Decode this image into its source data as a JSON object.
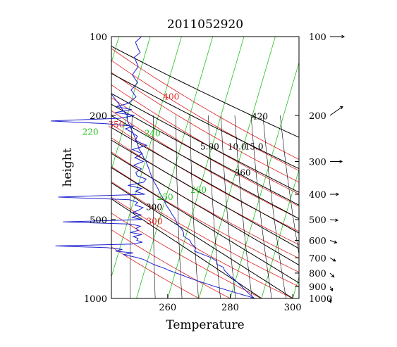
{
  "chart_data": {
    "type": "skew-t",
    "title": "2011052920",
    "xlabel": "Temperature",
    "ylabel": "height",
    "xlim": [
      242,
      302
    ],
    "ylim": [
      1000,
      100
    ],
    "y_scale": "log",
    "x_ticks": [
      260,
      280,
      300
    ],
    "y_ticks_left": [
      100,
      200,
      500,
      1000
    ],
    "y_ticks_right": [
      100,
      200,
      300,
      400,
      500,
      600,
      700,
      800,
      900,
      1000
    ],
    "isotherms": {
      "color": "#22c022",
      "step": 10,
      "labels": [
        {
          "text": "220",
          "value": 220,
          "p": 237
        },
        {
          "text": "240",
          "value": 240,
          "p": 240
        },
        {
          "text": "250",
          "value": 250,
          "p": 420
        },
        {
          "text": "260",
          "value": 260,
          "p": 395
        }
      ]
    },
    "dry_adiabats": {
      "color": "#dd2222",
      "thetas": [
        270,
        280,
        290,
        300,
        310,
        320,
        330,
        340,
        350,
        360,
        370,
        380,
        390,
        400,
        410
      ],
      "labels": [
        {
          "text": "300",
          "theta": 300,
          "p": 520
        },
        {
          "text": "350",
          "theta": 350,
          "p": 222
        },
        {
          "text": "400",
          "theta": 400,
          "p": 174
        }
      ]
    },
    "moist_adiabats": {
      "color": "#000000",
      "thetas": [
        290,
        300,
        310,
        320,
        330,
        340,
        350,
        360,
        370,
        390,
        420
      ],
      "labels": [
        {
          "text": "300",
          "theta": 300,
          "p": 460
        },
        {
          "text": "360",
          "theta": 360,
          "p": 340
        },
        {
          "text": "420",
          "theta": 420,
          "p": 207
        }
      ]
    },
    "mixing_ratio": {
      "color": "#000000",
      "values": [
        0.5,
        1,
        2,
        3,
        5,
        7,
        10,
        15,
        20,
        30
      ],
      "labels": [
        {
          "text": "5.00",
          "value": 5,
          "p": 270
        },
        {
          "text": "10.0",
          "value": 10,
          "p": 270
        },
        {
          "text": "15.0",
          "value": 15,
          "p": 270
        }
      ]
    },
    "temperature_profile": {
      "color": "#1e22cc",
      "points": [
        [
          100,
          214.8
        ],
        [
          108,
          213.5
        ],
        [
          115,
          214.1
        ],
        [
          123,
          214
        ],
        [
          130,
          215.2
        ],
        [
          140,
          217
        ],
        [
          150,
          219.7
        ],
        [
          160,
          221.6
        ],
        [
          170,
          223.9
        ],
        [
          180,
          226.1
        ],
        [
          190,
          227.9
        ],
        [
          200,
          230
        ],
        [
          210,
          230.6
        ],
        [
          220,
          231.9
        ],
        [
          230,
          233.1
        ],
        [
          240,
          234.2
        ],
        [
          250,
          235.3
        ],
        [
          260,
          236.2
        ],
        [
          270,
          237
        ],
        [
          280,
          238.3
        ],
        [
          290,
          239.2
        ],
        [
          300,
          240.3
        ],
        [
          320,
          241.9
        ],
        [
          340,
          243.3
        ],
        [
          360,
          244.9
        ],
        [
          380,
          246.6
        ],
        [
          400,
          248
        ],
        [
          420,
          249.7
        ],
        [
          440,
          250.8
        ],
        [
          460,
          252.4
        ],
        [
          480,
          253.7
        ],
        [
          500,
          255.2
        ],
        [
          520,
          256.1
        ],
        [
          540,
          257.8
        ],
        [
          560,
          258.9
        ],
        [
          580,
          259.4
        ],
        [
          600,
          261.7
        ],
        [
          620,
          262.6
        ],
        [
          640,
          264.3
        ],
        [
          660,
          264.2
        ],
        [
          680,
          267.3
        ],
        [
          700,
          270.3
        ],
        [
          720,
          272.2
        ],
        [
          740,
          272.5
        ],
        [
          760,
          274.9
        ],
        [
          780,
          275.5
        ],
        [
          800,
          276.6
        ],
        [
          820,
          277.8
        ],
        [
          840,
          279.2
        ],
        [
          860,
          280.3
        ],
        [
          880,
          281.4
        ],
        [
          900,
          282.5
        ],
        [
          920,
          283.5
        ],
        [
          940,
          284.6
        ],
        [
          960,
          285.6
        ],
        [
          980,
          286.7
        ],
        [
          1000,
          287.8
        ]
      ]
    },
    "height_profile": {
      "color": "#1e22cc",
      "points": [
        [
          100,
          251.6
        ],
        [
          105,
          249.7
        ],
        [
          110,
          250.4
        ],
        [
          115,
          251.2
        ],
        [
          120,
          249.3
        ],
        [
          130,
          250.6
        ],
        [
          140,
          248.7
        ],
        [
          150,
          250.4
        ],
        [
          160,
          248.3
        ],
        [
          170,
          249.9
        ],
        [
          180,
          247.3
        ],
        [
          185,
          243.6
        ],
        [
          190,
          248.5
        ],
        [
          195,
          243.2
        ],
        [
          200,
          249.4
        ],
        [
          205,
          244.7
        ],
        [
          210,
          222.6
        ],
        [
          215,
          240.3
        ],
        [
          220,
          249.1
        ],
        [
          225,
          246.5
        ],
        [
          230,
          248
        ],
        [
          240,
          250.3
        ],
        [
          250,
          249.6
        ],
        [
          260,
          253.3
        ],
        [
          270,
          248.7
        ],
        [
          280,
          251.9
        ],
        [
          290,
          249.5
        ],
        [
          300,
          252.2
        ],
        [
          310,
          249.1
        ],
        [
          320,
          251.6
        ],
        [
          330,
          249.8
        ],
        [
          340,
          250.2
        ],
        [
          350,
          253.1
        ],
        [
          360,
          252.3
        ],
        [
          370,
          247.3
        ],
        [
          380,
          251.7
        ],
        [
          390,
          249.7
        ],
        [
          400,
          252.7
        ],
        [
          410,
          225
        ],
        [
          420,
          247.8
        ],
        [
          430,
          250.4
        ],
        [
          440,
          249.6
        ],
        [
          450,
          252.1
        ],
        [
          460,
          250.7
        ],
        [
          470,
          248.8
        ],
        [
          480,
          251.5
        ],
        [
          490,
          248.5
        ],
        [
          500,
          251.8
        ],
        [
          510,
          226.5
        ],
        [
          520,
          248.2
        ],
        [
          530,
          251.3
        ],
        [
          540,
          249.9
        ],
        [
          550,
          250.6
        ],
        [
          560,
          248.1
        ],
        [
          570,
          251.8
        ],
        [
          580,
          249
        ],
        [
          590,
          250.5
        ],
        [
          600,
          250.1
        ],
        [
          610,
          251.9
        ],
        [
          620,
          248.7
        ],
        [
          630,
          224.1
        ],
        [
          640,
          240.7
        ],
        [
          650,
          245.5
        ],
        [
          660,
          243.3
        ],
        [
          670,
          249
        ],
        [
          680,
          245.8
        ],
        [
          690,
          248.4
        ],
        [
          700,
          250.6
        ],
        [
          710,
          252.3
        ],
        [
          720,
          253.3
        ],
        [
          730,
          254.3
        ],
        [
          740,
          255.4
        ],
        [
          750,
          256.6
        ],
        [
          760,
          258
        ],
        [
          770,
          259.3
        ],
        [
          780,
          260.3
        ],
        [
          790,
          261.5
        ],
        [
          800,
          262.7
        ],
        [
          810,
          264
        ],
        [
          820,
          265.2
        ],
        [
          830,
          266.3
        ],
        [
          840,
          267.5
        ],
        [
          850,
          268.7
        ],
        [
          860,
          270
        ],
        [
          870,
          271.2
        ],
        [
          880,
          272.6
        ],
        [
          890,
          273.8
        ],
        [
          900,
          275.1
        ],
        [
          910,
          276.4
        ],
        [
          920,
          277.7
        ],
        [
          930,
          279
        ],
        [
          940,
          280.3
        ],
        [
          950,
          281.6
        ],
        [
          960,
          282.9
        ],
        [
          970,
          284.2
        ],
        [
          980,
          285.5
        ],
        [
          990,
          286.8
        ],
        [
          1000,
          288.1
        ]
      ]
    },
    "wind_barbs": [
      {
        "p": 100,
        "length": 20,
        "angle": 0
      },
      {
        "p": 200,
        "length": 22,
        "angle": -35
      },
      {
        "p": 300,
        "length": 17,
        "angle": 0
      },
      {
        "p": 400,
        "length": 12,
        "angle": 0
      },
      {
        "p": 500,
        "length": 11,
        "angle": 5
      },
      {
        "p": 600,
        "length": 10,
        "angle": 20
      },
      {
        "p": 700,
        "length": 9,
        "angle": 30
      },
      {
        "p": 800,
        "length": 8,
        "angle": 45
      },
      {
        "p": 900,
        "length": 7,
        "angle": 60
      },
      {
        "p": 1000,
        "length": 6,
        "angle": 80
      }
    ]
  }
}
